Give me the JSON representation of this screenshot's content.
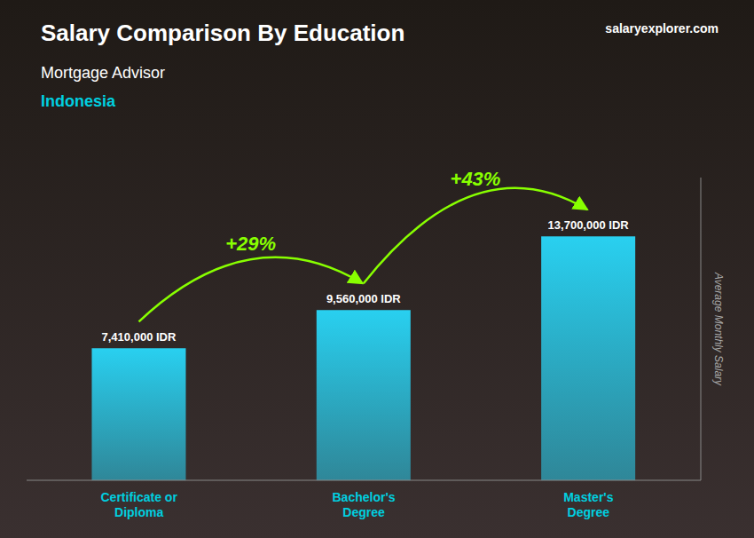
{
  "chart_data": {
    "type": "bar",
    "title": "Salary Comparison By Education",
    "subtitle": [
      "Mortgage Advisor",
      "Indonesia"
    ],
    "ylabel": "Average Monthly Salary",
    "categories": [
      "Certificate or\nDiploma",
      "Bachelor's\nDegree",
      "Master's\nDegree"
    ],
    "values": [
      7410000,
      9560000,
      13700000
    ],
    "value_labels": [
      "7,410,000 IDR",
      "9,560,000 IDR",
      "13,700,000 IDR"
    ],
    "data_labels": true,
    "color": "#29d0f0",
    "ylim": [
      0,
      17000000
    ],
    "tick_labels": "x",
    "grid": false,
    "annotations": [
      {
        "text": "salaryexplorer.com"
      },
      {
        "text": "+29%",
        "from": "Certificate or\nDiploma",
        "to": "Bachelor's\nDegree",
        "color": "#88ff00"
      },
      {
        "text": "+43%",
        "from": "Bachelor's\nDegree",
        "to": "Master's\nDegree",
        "color": "#88ff00"
      }
    ]
  }
}
